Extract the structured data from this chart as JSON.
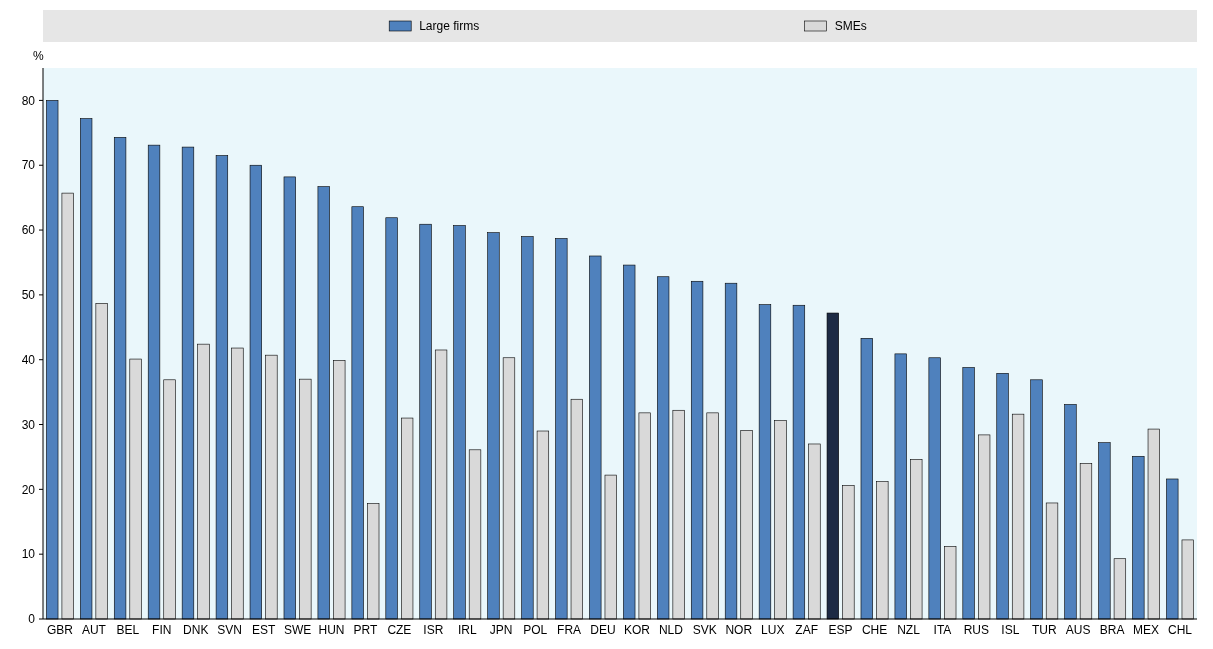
{
  "chart_data": {
    "type": "bar",
    "ylabel": "%",
    "legend": "top",
    "grid": false,
    "categories": [
      "GBR",
      "AUT",
      "BEL",
      "FIN",
      "DNK",
      "SVN",
      "EST",
      "SWE",
      "HUN",
      "PRT",
      "CZE",
      "ISR",
      "IRL",
      "JPN",
      "POL",
      "FRA",
      "DEU",
      "KOR",
      "NLD",
      "SVK",
      "NOR",
      "LUX",
      "ZAF",
      "ESP",
      "CHE",
      "NZL",
      "ITA",
      "RUS",
      "ISL",
      "TUR",
      "AUS",
      "BRA",
      "MEX",
      "CHL"
    ],
    "series": [
      {
        "name": "Large firms",
        "color": "#4f81bd",
        "colors": [
          "#4f81bd",
          "#4f81bd",
          "#4f81bd",
          "#4f81bd",
          "#4f81bd",
          "#4f81bd",
          "#4f81bd",
          "#4f81bd",
          "#4f81bd",
          "#4f81bd",
          "#4f81bd",
          "#4f81bd",
          "#4f81bd",
          "#4f81bd",
          "#4f81bd",
          "#4f81bd",
          "#4f81bd",
          "#4f81bd",
          "#4f81bd",
          "#4f81bd",
          "#4f81bd",
          "#4f81bd",
          "#4f81bd",
          "#1c2a44",
          "#4f81bd",
          "#4f81bd",
          "#4f81bd",
          "#4f81bd",
          "#4f81bd",
          "#4f81bd",
          "#4f81bd",
          "#4f81bd",
          "#4f81bd",
          "#4f81bd"
        ],
        "values": [
          80,
          77.2,
          74.3,
          73.1,
          72.8,
          71.5,
          70,
          68.2,
          66.7,
          63.6,
          61.9,
          60.9,
          60.7,
          59.6,
          59,
          58.7,
          56,
          54.6,
          52.8,
          52.1,
          51.8,
          48.5,
          48.4,
          47.2,
          43.3,
          40.9,
          40.3,
          38.8,
          37.9,
          36.9,
          33.1,
          27.2,
          25.1,
          21.6
        ]
      },
      {
        "name": "SMEs",
        "color": "#d9d9d9",
        "values": [
          65.7,
          48.7,
          40.1,
          36.9,
          42.4,
          41.8,
          40.7,
          37,
          39.9,
          17.8,
          31,
          41.5,
          26.1,
          40.3,
          29,
          33.9,
          22.2,
          31.8,
          32.2,
          31.8,
          29.1,
          30.6,
          27,
          20.6,
          21.2,
          24.6,
          11.2,
          28.4,
          31.6,
          17.9,
          24,
          9.3,
          29.3,
          12.2
        ]
      }
    ],
    "ylim": [
      0,
      85
    ],
    "yticks": [
      0,
      10,
      20,
      30,
      40,
      50,
      60,
      70,
      80
    ]
  }
}
